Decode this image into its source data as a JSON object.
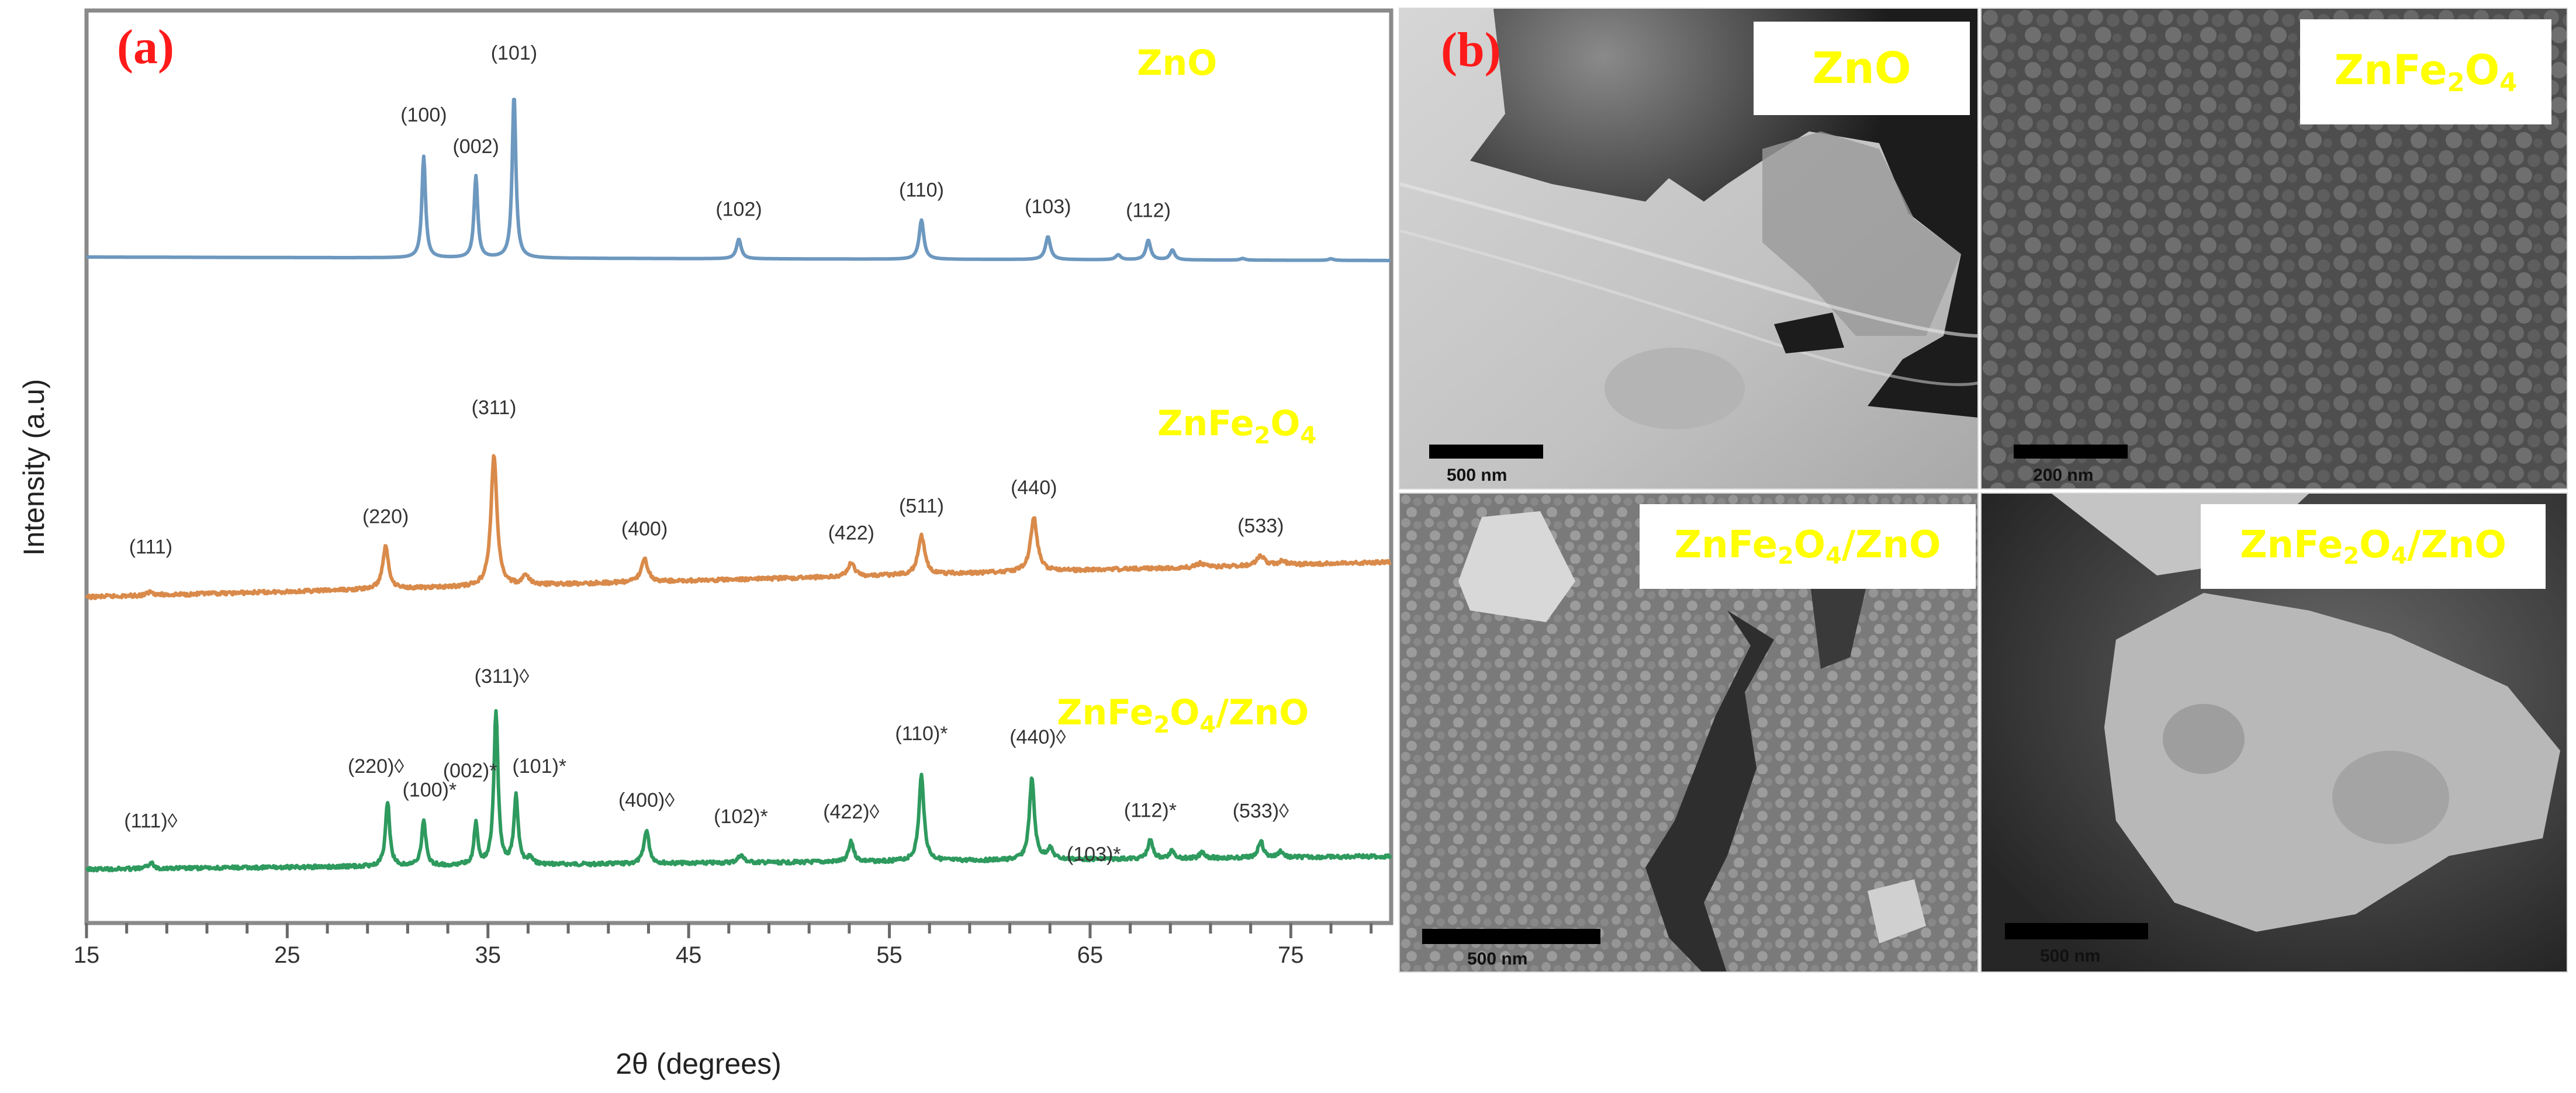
{
  "figure": {
    "panel_a_label": "(a)",
    "panel_b_label": "(b)"
  },
  "colors": {
    "zno_trace": "#6d98bf",
    "znfe2o4_trace": "#d98a4a",
    "composite_trace": "#2e9a5e",
    "series_label": "#ffff00",
    "panel_letter": "#ff1a1a",
    "axis": "#808080"
  },
  "chart_data": {
    "type": "line",
    "title": "",
    "xlabel": "2θ (degrees)",
    "ylabel": "Intensity (a.u)",
    "xlim": [
      15,
      80
    ],
    "xticks": [
      15,
      25,
      35,
      45,
      55,
      65,
      75
    ],
    "xtick_labels": [
      "15",
      "25",
      "35",
      "45",
      "55",
      "65",
      "75"
    ],
    "minor_tick_step": 2,
    "grid": false,
    "legend": "inline series labels at right",
    "series": [
      {
        "name": "ZnO",
        "label_parts": [
          {
            "t": "ZnO"
          }
        ],
        "baseline": 0.0,
        "peaks": [
          {
            "x": 31.8,
            "h": 0.62,
            "w": 0.22,
            "label": "(100)"
          },
          {
            "x": 34.4,
            "h": 0.5,
            "w": 0.22,
            "label": "(002)"
          },
          {
            "x": 36.3,
            "h": 1.0,
            "w": 0.22,
            "label": "(101)"
          },
          {
            "x": 47.5,
            "h": 0.12,
            "w": 0.28,
            "label": "(102)"
          },
          {
            "x": 56.6,
            "h": 0.24,
            "w": 0.28,
            "label": "(110)"
          },
          {
            "x": 62.9,
            "h": 0.14,
            "w": 0.3,
            "label": "(103)"
          },
          {
            "x": 66.4,
            "h": 0.03,
            "w": 0.3,
            "label": ""
          },
          {
            "x": 67.9,
            "h": 0.12,
            "w": 0.28,
            "label": "(112)"
          },
          {
            "x": 69.1,
            "h": 0.06,
            "w": 0.28,
            "label": ""
          },
          {
            "x": 72.6,
            "h": 0.01,
            "w": 0.3,
            "label": ""
          },
          {
            "x": 77.0,
            "h": 0.01,
            "w": 0.3,
            "label": ""
          }
        ]
      },
      {
        "name": "ZnFe2O4",
        "label_parts": [
          {
            "t": "ZnFe"
          },
          {
            "sub": "2"
          },
          {
            "t": "O"
          },
          {
            "sub": "4"
          }
        ],
        "baseline": 0.0,
        "peaks": [
          {
            "x": 18.2,
            "h": 0.02,
            "w": 0.35,
            "label": "(111)"
          },
          {
            "x": 29.9,
            "h": 0.22,
            "w": 0.35,
            "label": "(220)"
          },
          {
            "x": 35.3,
            "h": 0.68,
            "w": 0.35,
            "label": "(311)"
          },
          {
            "x": 36.9,
            "h": 0.05,
            "w": 0.35,
            "label": ""
          },
          {
            "x": 42.8,
            "h": 0.12,
            "w": 0.4,
            "label": "(400)"
          },
          {
            "x": 53.1,
            "h": 0.07,
            "w": 0.4,
            "label": "(422)"
          },
          {
            "x": 56.6,
            "h": 0.2,
            "w": 0.4,
            "label": "(511)"
          },
          {
            "x": 62.2,
            "h": 0.28,
            "w": 0.4,
            "label": "(440)"
          },
          {
            "x": 70.5,
            "h": 0.02,
            "w": 0.4,
            "label": ""
          },
          {
            "x": 73.5,
            "h": 0.05,
            "w": 0.45,
            "label": "(533)"
          },
          {
            "x": 74.6,
            "h": 0.02,
            "w": 0.4,
            "label": ""
          }
        ]
      },
      {
        "name": "ZnFe2O4/ZnO",
        "label_parts": [
          {
            "t": "ZnFe"
          },
          {
            "sub": "2"
          },
          {
            "t": "O"
          },
          {
            "sub": "4"
          },
          {
            "t": "/ZnO"
          }
        ],
        "baseline": 0.0,
        "peaks": [
          {
            "x": 18.2,
            "h": 0.04,
            "w": 0.3,
            "label": "(111)◊"
          },
          {
            "x": 30.0,
            "h": 0.42,
            "w": 0.25,
            "label": "(220)◊"
          },
          {
            "x": 31.8,
            "h": 0.3,
            "w": 0.25,
            "label": "(100)*"
          },
          {
            "x": 34.4,
            "h": 0.27,
            "w": 0.22,
            "label": "(002)*"
          },
          {
            "x": 35.4,
            "h": 1.0,
            "w": 0.25,
            "label": "(311)◊"
          },
          {
            "x": 36.4,
            "h": 0.45,
            "w": 0.25,
            "label": "(101)*"
          },
          {
            "x": 37.1,
            "h": 0.04,
            "w": 0.3,
            "label": ""
          },
          {
            "x": 42.9,
            "h": 0.22,
            "w": 0.3,
            "label": "(400)◊"
          },
          {
            "x": 47.6,
            "h": 0.05,
            "w": 0.35,
            "label": "(102)*"
          },
          {
            "x": 53.1,
            "h": 0.13,
            "w": 0.3,
            "label": "(422)◊"
          },
          {
            "x": 56.6,
            "h": 0.56,
            "w": 0.3,
            "label": "(110)*"
          },
          {
            "x": 62.1,
            "h": 0.53,
            "w": 0.3,
            "label": "(440)◊"
          },
          {
            "x": 63.0,
            "h": 0.07,
            "w": 0.35,
            "label": "(103)*"
          },
          {
            "x": 68.0,
            "h": 0.12,
            "w": 0.3,
            "label": "(112)*"
          },
          {
            "x": 69.1,
            "h": 0.05,
            "w": 0.3,
            "label": ""
          },
          {
            "x": 70.6,
            "h": 0.04,
            "w": 0.3,
            "label": ""
          },
          {
            "x": 73.5,
            "h": 0.11,
            "w": 0.3,
            "label": "(533)◊"
          },
          {
            "x": 74.5,
            "h": 0.04,
            "w": 0.3,
            "label": ""
          },
          {
            "x": 78.3,
            "h": 0.01,
            "w": 0.3,
            "label": ""
          }
        ]
      }
    ]
  },
  "sem_panels": [
    {
      "id": "zno",
      "label_parts": [
        {
          "t": "ZnO"
        }
      ],
      "scale_text": "500 nm"
    },
    {
      "id": "znfe2o4",
      "label_parts": [
        {
          "t": "ZnFe"
        },
        {
          "sub": "2"
        },
        {
          "t": "O"
        },
        {
          "sub": "4"
        }
      ],
      "scale_text": "200 nm"
    },
    {
      "id": "composite-1",
      "label_parts": [
        {
          "t": "ZnFe"
        },
        {
          "sub": "2"
        },
        {
          "t": "O"
        },
        {
          "sub": "4"
        },
        {
          "t": "/ZnO"
        }
      ],
      "scale_text": "500 nm"
    },
    {
      "id": "composite-2",
      "label_parts": [
        {
          "t": "ZnFe"
        },
        {
          "sub": "2"
        },
        {
          "t": "O"
        },
        {
          "sub": "4"
        },
        {
          "t": "/ZnO"
        }
      ],
      "scale_text": "500 nm"
    }
  ]
}
